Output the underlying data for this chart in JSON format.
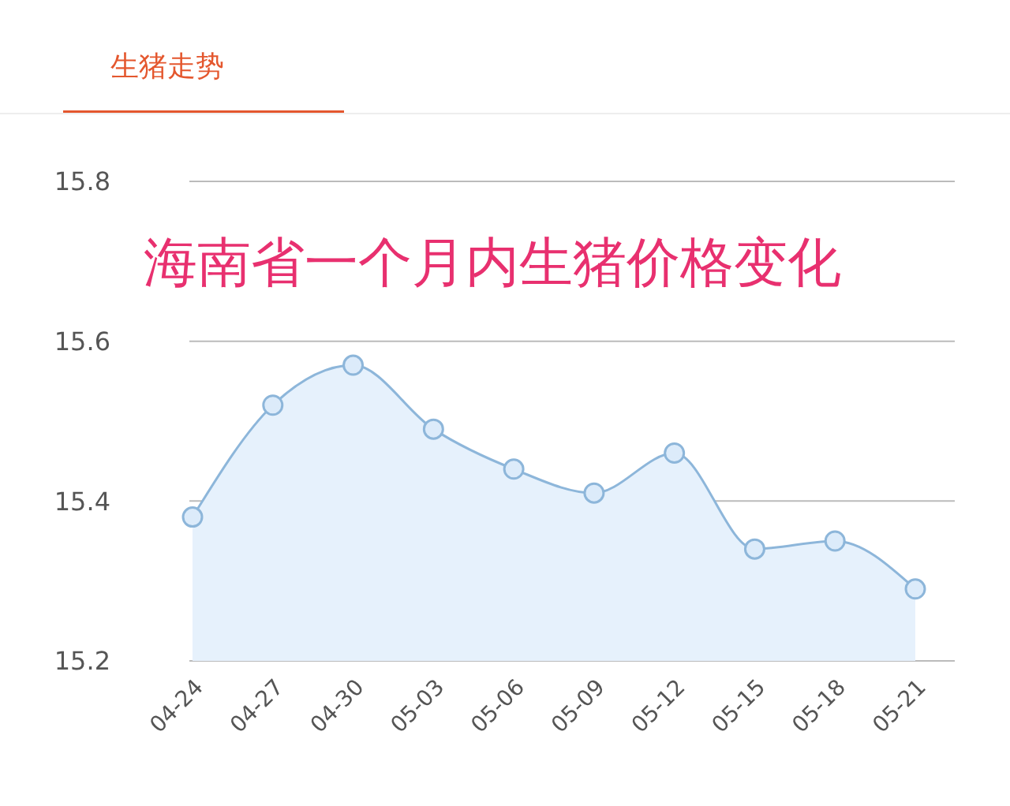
{
  "chart_data": {
    "type": "area",
    "title": "生猪走势",
    "subtitle": "海南省一个月内生猪价格变化",
    "categories": [
      "04-24",
      "04-27",
      "04-30",
      "05-03",
      "05-06",
      "05-09",
      "05-12",
      "05-15",
      "05-18",
      "05-21"
    ],
    "series": [
      {
        "color": "#8db6da",
        "values": [
          15.38,
          15.52,
          15.57,
          15.49,
          15.44,
          15.41,
          15.46,
          15.34,
          15.35,
          15.29
        ]
      }
    ],
    "ylim": [
      15.2,
      15.8
    ],
    "yticks": [
      15.2,
      15.4,
      15.6,
      15.8
    ],
    "grid": "y",
    "marker": "circle"
  }
}
